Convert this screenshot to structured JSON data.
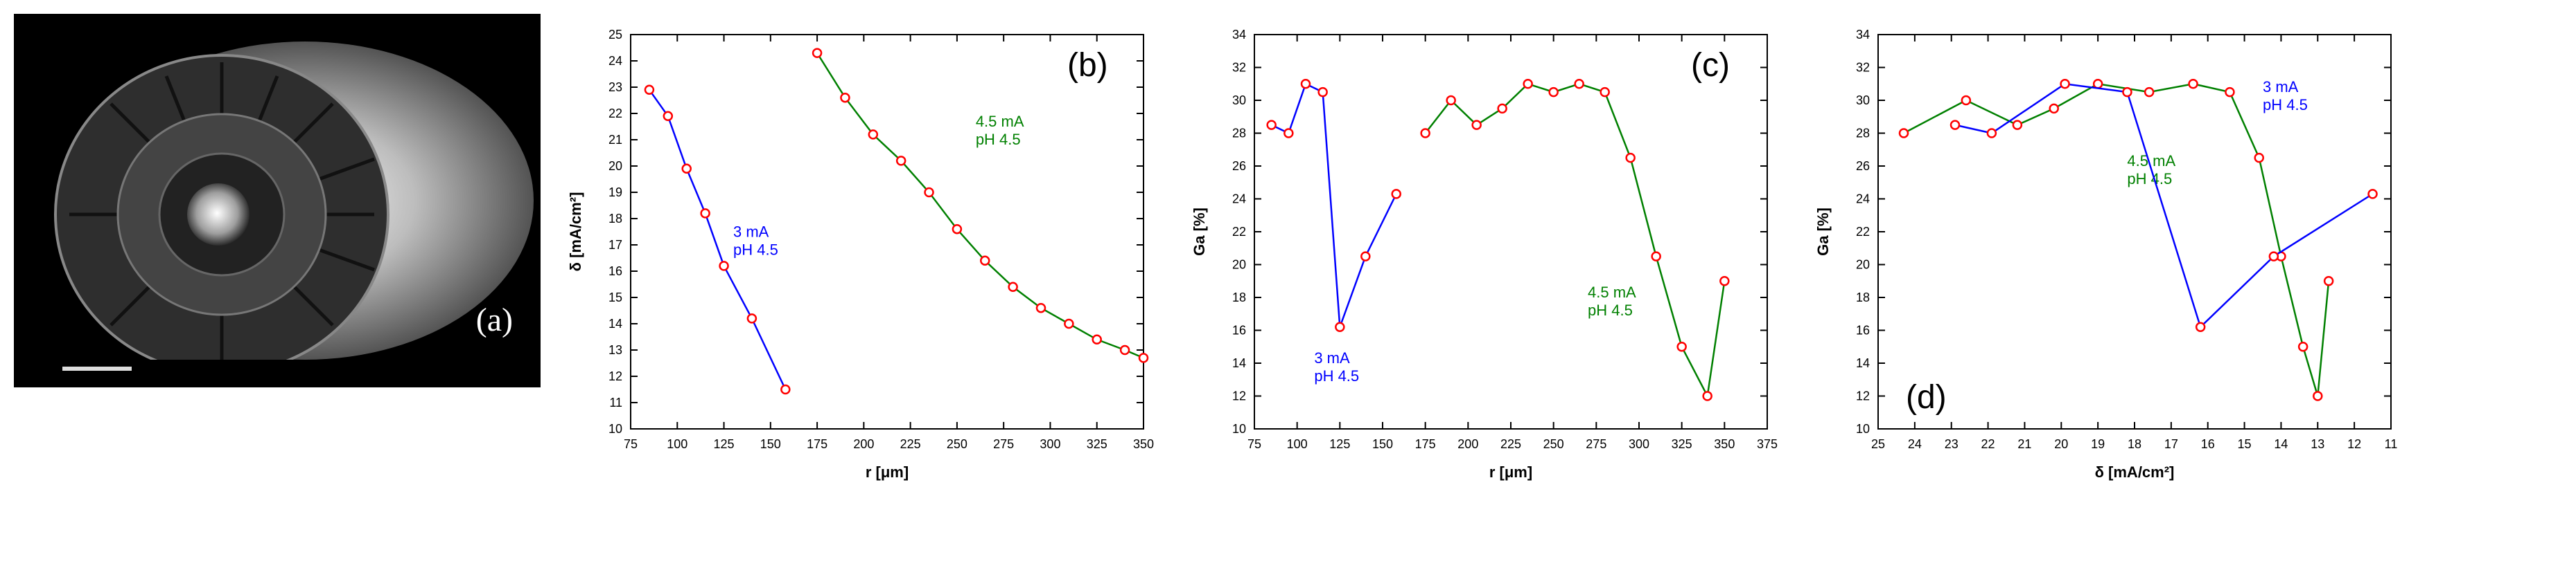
{
  "figure": {
    "panel_a": {
      "label": "(a)",
      "label_color": "#ffffff",
      "bg": "#000000"
    },
    "panel_b": {
      "label": "(b)",
      "xlabel": "r [μm]",
      "ylabel": "δ [mA/cm²]",
      "xlim": [
        75,
        350
      ],
      "xtick_step": 25,
      "ylim": [
        10,
        25
      ],
      "ytick_step": 1,
      "axis_color": "#000000",
      "tick_fontsize": 18,
      "label_fontsize": 22,
      "label_weight": "bold",
      "series": [
        {
          "name": "3 mA pH 4.5",
          "line_color": "#0000ff",
          "marker_edge": "#ff0000",
          "marker_fill": "#ffffff",
          "marker_r": 6,
          "line_w": 2.5,
          "x": [
            85,
            95,
            105,
            115,
            125,
            140,
            158
          ],
          "y": [
            22.9,
            21.9,
            19.9,
            18.2,
            16.2,
            14.2,
            11.5
          ],
          "ann": {
            "text1": "3 mA",
            "text2": "pH 4.5",
            "color": "#0000ff",
            "x": 130,
            "y": 17.3
          }
        },
        {
          "name": "4.5 mA pH 4.5",
          "line_color": "#008000",
          "marker_edge": "#ff0000",
          "marker_fill": "#ffffff",
          "marker_r": 6,
          "line_w": 2.5,
          "x": [
            175,
            190,
            205,
            220,
            235,
            250,
            265,
            280,
            295,
            310,
            325,
            340,
            350
          ],
          "y": [
            24.3,
            22.6,
            21.2,
            20.2,
            19.0,
            17.6,
            16.4,
            15.4,
            14.6,
            14.0,
            13.4,
            13.0,
            12.7
          ],
          "ann": {
            "text1": "4.5 mA",
            "text2": "pH 4.5",
            "color": "#008000",
            "x": 260,
            "y": 21.5
          }
        }
      ]
    },
    "panel_c": {
      "label": "(c)",
      "xlabel": "r [μm]",
      "ylabel": "Ga [%]",
      "xlim": [
        75,
        375
      ],
      "xtick_step": 25,
      "ylim": [
        10,
        34
      ],
      "ytick_step": 2,
      "axis_color": "#000000",
      "tick_fontsize": 18,
      "label_fontsize": 22,
      "label_weight": "bold",
      "series": [
        {
          "name": "3 mA pH 4.5",
          "line_color": "#0000ff",
          "marker_edge": "#ff0000",
          "marker_fill": "#ffffff",
          "marker_r": 6,
          "line_w": 2.5,
          "x": [
            85,
            95,
            105,
            115,
            125,
            140,
            158
          ],
          "y": [
            28.5,
            28.0,
            31.0,
            30.5,
            16.2,
            20.5,
            24.3
          ],
          "ann": {
            "text1": "3 mA",
            "text2": "pH 4.5",
            "color": "#0000ff",
            "x": 110,
            "y": 14.0
          }
        },
        {
          "name": "4.5 mA pH 4.5",
          "line_color": "#008000",
          "marker_edge": "#ff0000",
          "marker_fill": "#ffffff",
          "marker_r": 6,
          "line_w": 2.5,
          "x": [
            175,
            190,
            205,
            220,
            235,
            250,
            265,
            280,
            295,
            310,
            325,
            340,
            350
          ],
          "y": [
            28.0,
            30.0,
            28.5,
            29.5,
            31.0,
            30.5,
            31.0,
            30.5,
            26.5,
            20.5,
            15.0,
            12.0,
            19.0
          ],
          "ann": {
            "text1": "4.5 mA",
            "text2": "pH 4.5",
            "color": "#008000",
            "x": 270,
            "y": 18.0
          }
        }
      ]
    },
    "panel_d": {
      "label": "(d)",
      "xlabel": "δ [mA/cm²]",
      "ylabel": "Ga [%]",
      "xlim": [
        25,
        11
      ],
      "xtick_step": -1,
      "ylim": [
        10,
        34
      ],
      "ytick_step": 2,
      "axis_color": "#000000",
      "tick_fontsize": 18,
      "label_fontsize": 22,
      "label_weight": "bold",
      "series": [
        {
          "name": "4.5 mA pH 4.5",
          "line_color": "#008000",
          "marker_edge": "#ff0000",
          "marker_fill": "#ffffff",
          "marker_r": 6,
          "line_w": 2.5,
          "x": [
            24.3,
            22.6,
            21.2,
            20.2,
            19.0,
            17.6,
            16.4,
            15.4,
            14.6,
            14.0,
            13.4,
            13.0,
            12.7
          ],
          "y": [
            28.0,
            30.0,
            28.5,
            29.5,
            31.0,
            30.5,
            31.0,
            30.5,
            26.5,
            20.5,
            15.0,
            12.0,
            19.0
          ],
          "ann": {
            "text1": "4.5 mA",
            "text2": "pH 4.5",
            "color": "#008000",
            "x": 18.2,
            "y": 26.0
          }
        },
        {
          "name": "3 mA pH 4.5",
          "line_color": "#0000ff",
          "marker_edge": "#ff0000",
          "marker_fill": "#ffffff",
          "marker_r": 6,
          "line_w": 2.5,
          "x": [
            22.9,
            21.9,
            19.9,
            18.2,
            16.2,
            14.2,
            11.5
          ],
          "y": [
            28.5,
            28.0,
            31.0,
            30.5,
            16.2,
            20.5,
            24.3
          ],
          "ann": {
            "text1": "3 mA",
            "text2": "pH 4.5",
            "color": "#0000ff",
            "x": 14.5,
            "y": 30.5
          }
        }
      ]
    }
  }
}
